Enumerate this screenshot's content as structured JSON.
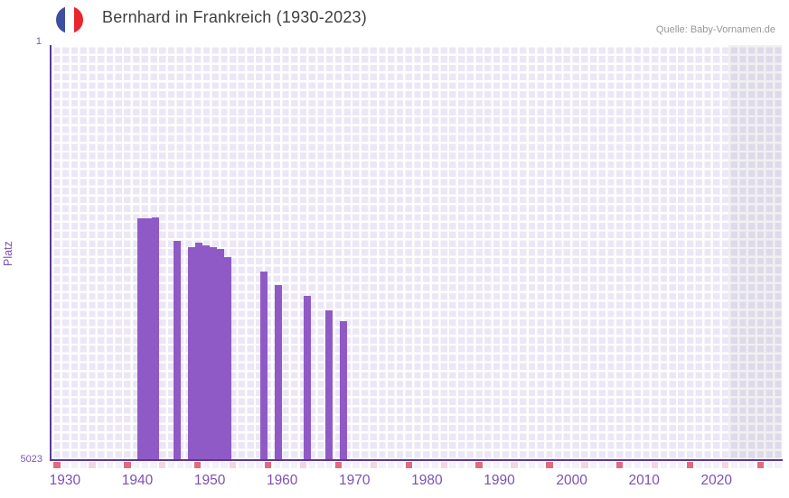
{
  "header": {
    "title": "Bernhard in Frankreich (1930-2023)",
    "source": "Quelle: Baby-Vornamen.de",
    "flag_icon": "france-flag"
  },
  "chart_data": {
    "type": "bar",
    "title": "Bernhard in Frankreich (1930-2023)",
    "xlabel": "",
    "ylabel": "Platz",
    "y_axis_inverted": true,
    "ylim": [
      1,
      5023
    ],
    "y_ticks": [
      "1",
      "5023"
    ],
    "x_range": [
      1930,
      2023
    ],
    "x_tick_labels": [
      "1930",
      "1940",
      "1950",
      "1960",
      "1970",
      "1980",
      "1990",
      "2000",
      "2010",
      "2020"
    ],
    "grid": true,
    "legend": false,
    "bars": [
      {
        "year": 1940,
        "rank": 2095
      },
      {
        "year": 1941,
        "rank": 2095
      },
      {
        "year": 1942,
        "rank": 2090
      },
      {
        "year": 1945,
        "rank": 2375
      },
      {
        "year": 1947,
        "rank": 2450
      },
      {
        "year": 1948,
        "rank": 2395
      },
      {
        "year": 1949,
        "rank": 2430
      },
      {
        "year": 1950,
        "rank": 2450
      },
      {
        "year": 1951,
        "rank": 2470
      },
      {
        "year": 1952,
        "rank": 2570
      },
      {
        "year": 1957,
        "rank": 2740
      },
      {
        "year": 1959,
        "rank": 2905
      },
      {
        "year": 1963,
        "rank": 3035
      },
      {
        "year": 1966,
        "rank": 3210
      },
      {
        "year": 1968,
        "rank": 3340
      }
    ]
  },
  "colors": {
    "bar": "#8f5ac6",
    "axis_line": "#5b3794",
    "grid_cell": "#ece7f6",
    "grid_line": "#ffffff",
    "tick_label": "#7b51b3",
    "ylabel": "#7b4fb0",
    "title_text": "#404040",
    "source_text": "#979797",
    "shade_overlay": "rgba(104,104,128,0.10)",
    "flag_blue": "#3c4fa1",
    "flag_white": "#ffffff",
    "flag_red": "#e8262d",
    "strip_salmon": "#e16b7c",
    "strip_pink": "#f2d7e0",
    "strip_base": "#f4f1fa"
  }
}
